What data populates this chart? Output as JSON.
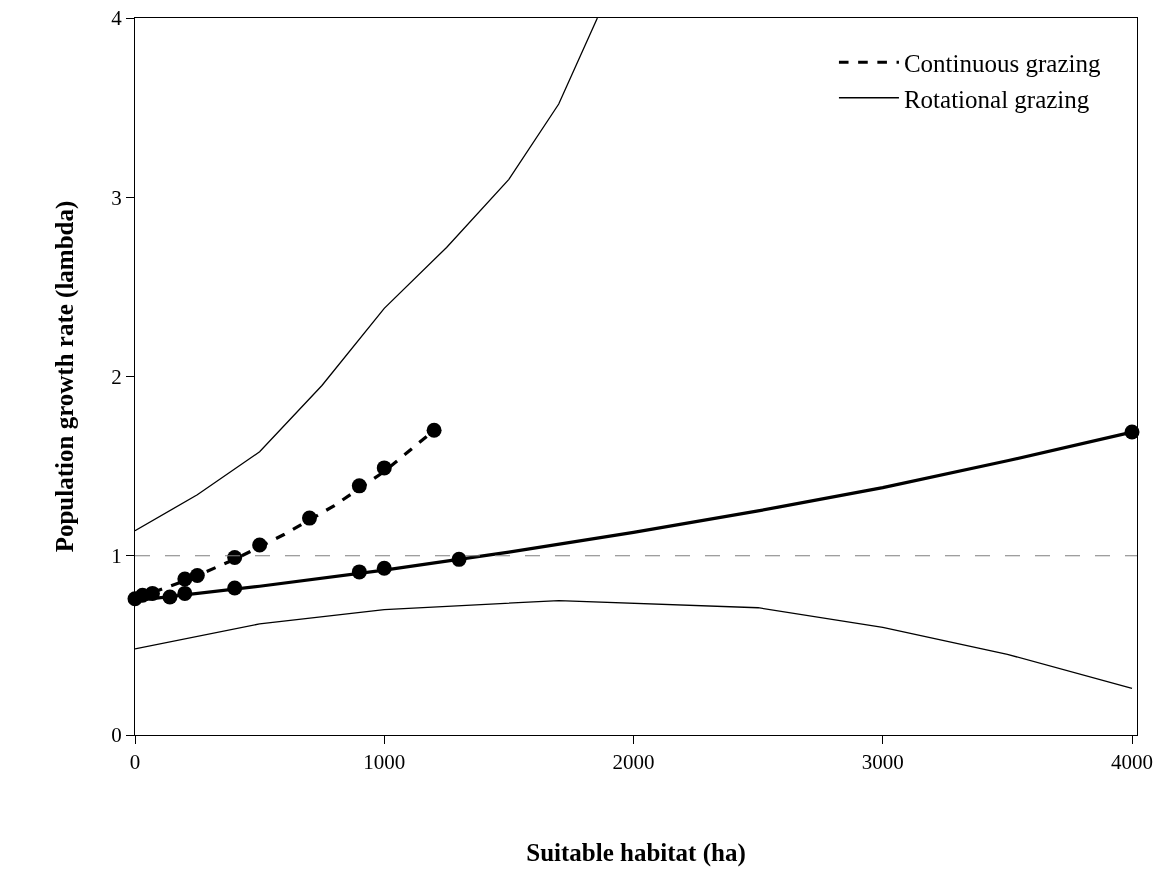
{
  "chart_data": {
    "type": "line",
    "xlabel": "Suitable habitat (ha)",
    "ylabel": "Population growth rate (lambda)",
    "xlim": [
      0,
      4020
    ],
    "ylim": [
      0,
      4
    ],
    "xticks": [
      0,
      1000,
      2000,
      3000,
      4000
    ],
    "yticks": [
      0,
      1,
      2,
      3,
      4
    ],
    "legend": "top right",
    "series": [
      {
        "name": "Continuous grazing",
        "color": "#000000",
        "line_style": "dashed",
        "marker": "none",
        "x": [
          0,
          200,
          400,
          600,
          800,
          1000,
          1200
        ],
        "values": [
          0.76,
          0.86,
          0.98,
          1.12,
          1.28,
          1.47,
          1.7
        ]
      },
      {
        "color": "#000000",
        "line_style": "solid",
        "marker": "none",
        "x": [
          0,
          500,
          1000,
          1500,
          2000,
          2500,
          3000,
          3500,
          4000
        ],
        "values": [
          0.75,
          0.83,
          0.92,
          1.02,
          1.13,
          1.25,
          1.38,
          1.53,
          1.69
        ]
      },
      {
        "name": "Rotational grazing",
        "color": "#000000",
        "line_style": "solid",
        "marker": "none",
        "x": [
          0,
          250,
          500,
          750,
          1000,
          1250,
          1500,
          1700,
          1855
        ],
        "values": [
          1.14,
          1.34,
          1.58,
          1.95,
          2.38,
          2.72,
          3.1,
          3.52,
          4.0
        ]
      },
      {
        "color": "#000000",
        "line_style": "solid",
        "marker": "none",
        "x": [
          0,
          500,
          1000,
          1700,
          2500,
          3000,
          3500,
          4000
        ],
        "values": [
          0.48,
          0.62,
          0.7,
          0.75,
          0.71,
          0.6,
          0.45,
          0.26
        ]
      },
      {
        "type": "scatter",
        "color": "#000000",
        "marker": "circle",
        "x": [
          200,
          250,
          400,
          500,
          700,
          900,
          1000,
          1200
        ],
        "values": [
          0.87,
          0.89,
          0.99,
          1.06,
          1.21,
          1.39,
          1.49,
          1.7
        ]
      },
      {
        "type": "scatter",
        "color": "#000000",
        "marker": "circle",
        "x": [
          0,
          30,
          70,
          140,
          200,
          400,
          900,
          1000,
          1300,
          4000
        ],
        "values": [
          0.76,
          0.78,
          0.79,
          0.77,
          0.79,
          0.82,
          0.91,
          0.93,
          0.98,
          1.69
        ]
      }
    ],
    "ref_lines": [
      {
        "axis": "y",
        "value": 1,
        "color": "#7f7f7f",
        "line_style": "dashed"
      }
    ]
  }
}
